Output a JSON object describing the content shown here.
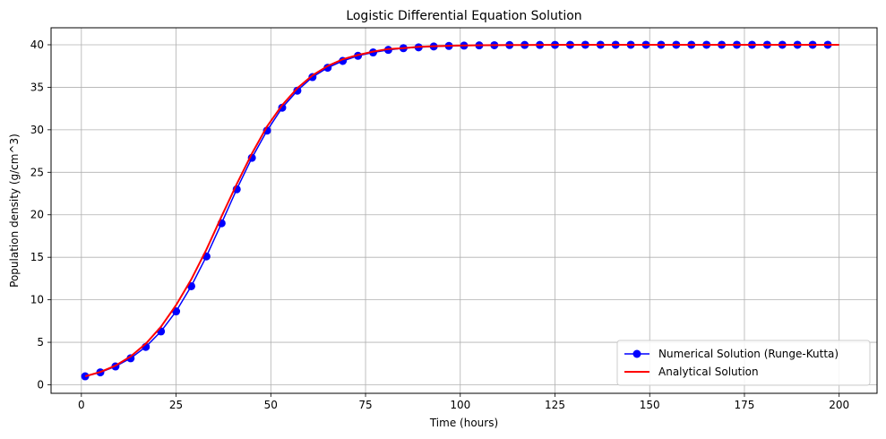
{
  "chart_data": {
    "type": "line",
    "title": "Logistic Differential Equation Solution",
    "xlabel": "Time (hours)",
    "ylabel": "Population density (g/cm^3)",
    "xlim": [
      -8,
      210
    ],
    "ylim": [
      -1,
      42
    ],
    "xticks": [
      0,
      25,
      50,
      75,
      100,
      125,
      150,
      175,
      200
    ],
    "yticks": [
      0,
      5,
      10,
      15,
      20,
      25,
      30,
      35,
      40
    ],
    "grid": true,
    "legend_position": "lower-right",
    "series": [
      {
        "name": "Numerical Solution (Runge-Kutta)",
        "color": "#0000ff",
        "marker": "circle",
        "x": [
          1,
          5,
          9,
          13,
          17,
          21,
          25,
          29,
          33,
          37,
          41,
          45,
          49,
          53,
          57,
          61,
          65,
          69,
          73,
          77,
          81,
          85,
          89,
          93,
          97,
          101,
          105,
          109,
          113,
          117,
          121,
          125,
          129,
          133,
          137,
          141,
          145,
          149,
          153,
          157,
          161,
          165,
          169,
          173,
          177,
          181,
          185,
          189,
          193,
          197
        ],
        "y": [
          1.0,
          1.47,
          2.16,
          3.12,
          4.46,
          6.28,
          8.64,
          11.6,
          15.1,
          19.0,
          23.0,
          26.7,
          29.9,
          32.6,
          34.6,
          36.2,
          37.3,
          38.1,
          38.7,
          39.1,
          39.4,
          39.6,
          39.7,
          39.8,
          39.86,
          39.9,
          39.93,
          39.95,
          39.97,
          39.98,
          39.98,
          39.99,
          39.99,
          40.0,
          40.0,
          40.0,
          40.0,
          40.0,
          40.0,
          40.0,
          40.0,
          40.0,
          40.0,
          40.0,
          40.0,
          40.0,
          40.0,
          40.0,
          40.0,
          40.0
        ]
      },
      {
        "name": "Analytical Solution",
        "color": "#ff0000",
        "marker": "none",
        "x": [
          1,
          5,
          9,
          13,
          17,
          21,
          25,
          29,
          33,
          37,
          41,
          45,
          49,
          53,
          57,
          61,
          65,
          69,
          73,
          77,
          81,
          85,
          89,
          93,
          97,
          101,
          105,
          109,
          113,
          117,
          121,
          125,
          130,
          140,
          150,
          160,
          170,
          180,
          190,
          200
        ],
        "y": [
          1.0,
          1.51,
          2.26,
          3.33,
          4.83,
          6.83,
          9.38,
          12.4,
          15.9,
          19.8,
          23.6,
          27.2,
          30.4,
          32.9,
          34.9,
          36.4,
          37.5,
          38.3,
          38.8,
          39.2,
          39.5,
          39.6,
          39.75,
          39.83,
          39.88,
          39.92,
          39.95,
          39.96,
          39.97,
          39.98,
          39.99,
          39.99,
          40.0,
          40.0,
          40.0,
          40.0,
          40.0,
          40.0,
          40.0,
          40.0
        ]
      }
    ]
  }
}
